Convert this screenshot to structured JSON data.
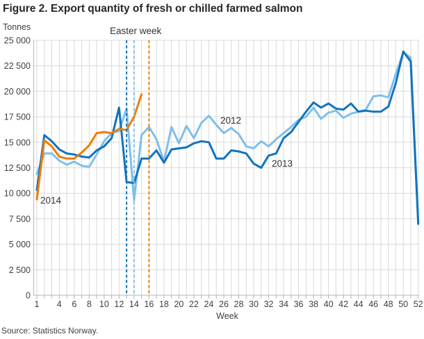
{
  "title": "Figure 2. Export quantity of fresh or chilled farmed salmon",
  "source": "Source: Statistics Norway.",
  "annotations": {
    "easter_label": "Easter week",
    "label_2012": "2012",
    "label_2013": "2013",
    "label_2014": "2014"
  },
  "colors": {
    "c2012": "#7FBFE9",
    "c2013": "#1173BC",
    "c2014": "#EF7D00",
    "grid": "#D9D9D9",
    "axis": "#B3B3B3",
    "text": "#333333"
  },
  "chart_data": {
    "type": "line",
    "title": "Figure 2. Export quantity of fresh or chilled farmed salmon",
    "xlabel": "Week",
    "ylabel": "Tonnes",
    "xlim": [
      1,
      52
    ],
    "ylim": [
      0,
      25000
    ],
    "ytick_step": 2500,
    "grid": true,
    "y_tick_labels": [
      "0",
      "2 500",
      "5 000",
      "7 500",
      "10 000",
      "12 500",
      "15 000",
      "17 500",
      "20 000",
      "22 500",
      "25 000"
    ],
    "x_tick_weeks": [
      1,
      4,
      6,
      8,
      10,
      12,
      14,
      16,
      18,
      20,
      22,
      24,
      26,
      28,
      30,
      32,
      34,
      36,
      38,
      40,
      42,
      44,
      46,
      48,
      50,
      52
    ],
    "series": [
      {
        "name": "2012",
        "color_key": "c2012",
        "start_week": 1,
        "values": [
          11900,
          13900,
          13900,
          13200,
          12800,
          13100,
          12700,
          12600,
          13800,
          15100,
          15900,
          16100,
          18300,
          9300,
          15700,
          16500,
          15300,
          13100,
          16500,
          14900,
          16600,
          15400,
          16900,
          17600,
          16700,
          15900,
          16400,
          15800,
          14600,
          14400,
          15100,
          14600,
          15300,
          15900,
          16500,
          17200,
          17500,
          18400,
          17300,
          17900,
          18100,
          17400,
          17800,
          18000,
          18200,
          19500,
          19600,
          19400,
          21700,
          23800,
          23300,
          7200
        ]
      },
      {
        "name": "2013",
        "color_key": "c2013",
        "start_week": 1,
        "values": [
          10300,
          15700,
          15100,
          14300,
          13900,
          13800,
          13600,
          13500,
          14200,
          14600,
          15400,
          18400,
          11100,
          11000,
          13400,
          13400,
          14200,
          13000,
          14300,
          14400,
          14500,
          14900,
          15100,
          15000,
          13400,
          13400,
          14200,
          14100,
          13900,
          12900,
          12500,
          13700,
          13900,
          15400,
          16000,
          17000,
          18000,
          18900,
          18400,
          18800,
          18300,
          18200,
          18800,
          18000,
          18100,
          18000,
          18000,
          18500,
          20800,
          23900,
          22900,
          7000
        ]
      },
      {
        "name": "2014",
        "color_key": "c2014",
        "start_week": 1,
        "values": [
          9400,
          15200,
          14600,
          13600,
          13400,
          13400,
          14000,
          14700,
          15900,
          16000,
          15900,
          16300,
          16200,
          17500,
          19700
        ]
      }
    ],
    "easter_lines": [
      {
        "series": "2013",
        "week": 13,
        "color_key": "c2013"
      },
      {
        "series": "2012",
        "week": 14,
        "color_key": "c2012"
      },
      {
        "series": "2014",
        "week": 16,
        "color_key": "c2014"
      }
    ]
  }
}
